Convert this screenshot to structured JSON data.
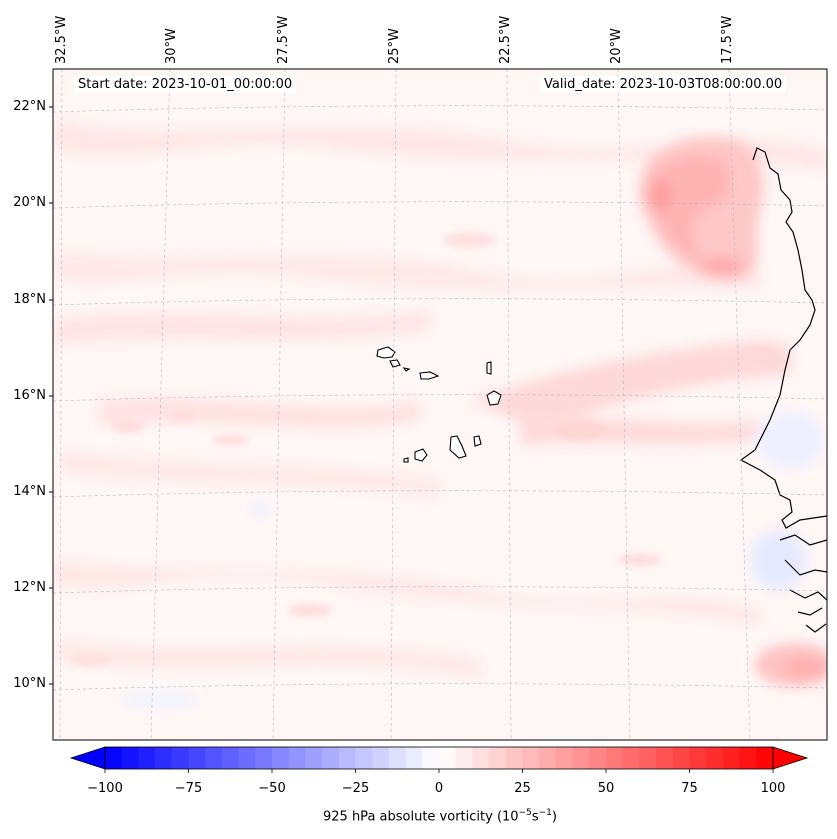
{
  "map": {
    "start_date": "Start date: 2023-10-01_00:00:00",
    "valid_date": "Valid_date: 2023-10-03T08:00:00.00",
    "lon_labels": [
      "32.5°W",
      "30°W",
      "27.5°W",
      "25°W",
      "22.5°W",
      "20°W",
      "17.5°W"
    ],
    "lat_labels": [
      "22°N",
      "20°N",
      "18°N",
      "16°N",
      "14°N",
      "12°N",
      "10°N"
    ],
    "extent": {
      "lon_min": -33.0,
      "lon_max": -15.0,
      "lat_min": 8.8,
      "lat_max": 22.8
    },
    "field": "925 hPa absolute vorticity",
    "islands": [
      "Santo Antão",
      "São Vicente",
      "Santa Luzia",
      "São Nicolau",
      "Sal",
      "Boa Vista",
      "Maio",
      "Santiago",
      "Fogo",
      "Brava"
    ]
  },
  "colorbar": {
    "label_prefix": "925 hPa absolute vorticity (10",
    "label_exp1": "−5",
    "label_mid": "s",
    "label_exp2": "−1",
    "label_suffix": ")",
    "ticks": [
      "−100",
      "−75",
      "−50",
      "−25",
      "0",
      "25",
      "50",
      "75",
      "100"
    ],
    "range": [
      -100,
      100
    ],
    "colormap": "bwr",
    "extend": "both",
    "colors": {
      "negative": "#0000ff",
      "zero": "#ffffff",
      "positive": "#ff0000"
    }
  }
}
